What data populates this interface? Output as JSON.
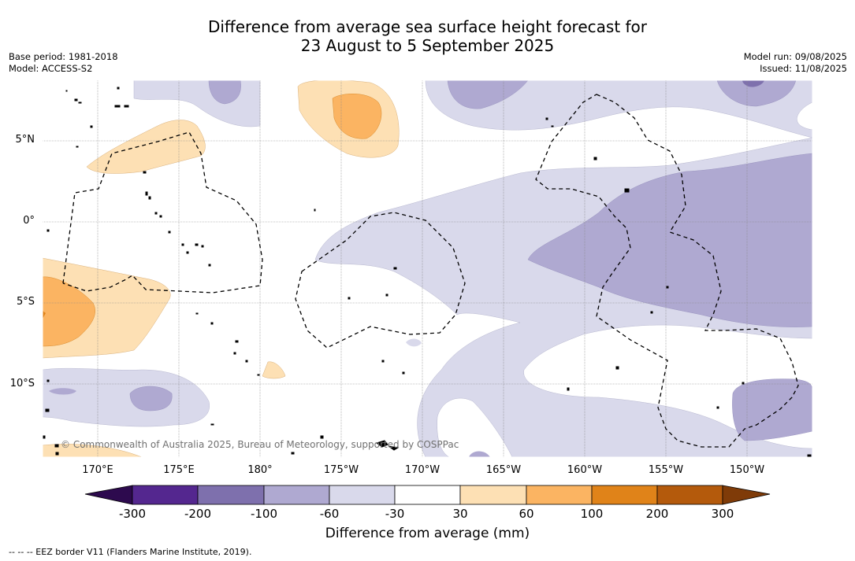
{
  "title": {
    "line1": "Difference from average sea surface height forecast for",
    "line2": "23 August to 5 September 2025"
  },
  "meta_left": {
    "base_period": "Base period: 1981-2018",
    "model": "Model: ACCESS-S2"
  },
  "meta_right": {
    "model_run": "Model run: 09/08/2025",
    "issued": "Issued: 11/08/2025"
  },
  "map": {
    "lat_labels": [
      "5°N",
      "0°",
      "5°S",
      "10°S"
    ],
    "lon_labels": [
      "170°E",
      "175°E",
      "180°",
      "175°W",
      "170°W",
      "165°W",
      "160°W",
      "155°W",
      "150°W"
    ],
    "attribution": "© Commonwealth of Australia 2025, Bureau of Meteorology, supported by COSPPac",
    "colors": {
      "neg_300": "#2d0a4e",
      "neg_200": "#54278f",
      "neg_100": "#7e70ad",
      "neg_60": "#afa9d1",
      "neg_30": "#d9d9eb",
      "zero": "#ffffff",
      "pos_30": "#fde0b4",
      "pos_60": "#fbb462",
      "pos_100": "#e08319",
      "pos_200": "#b45a0c",
      "pos_300": "#7f3b08"
    }
  },
  "colorbar": {
    "tick_labels": [
      "-300",
      "-200",
      "-100",
      "-60",
      "-30",
      "30",
      "60",
      "100",
      "200",
      "300"
    ],
    "title": "Difference from average (mm)"
  },
  "footnote": "--  --  -- EEZ border V11 (Flanders Marine Institute, 2019)."
}
